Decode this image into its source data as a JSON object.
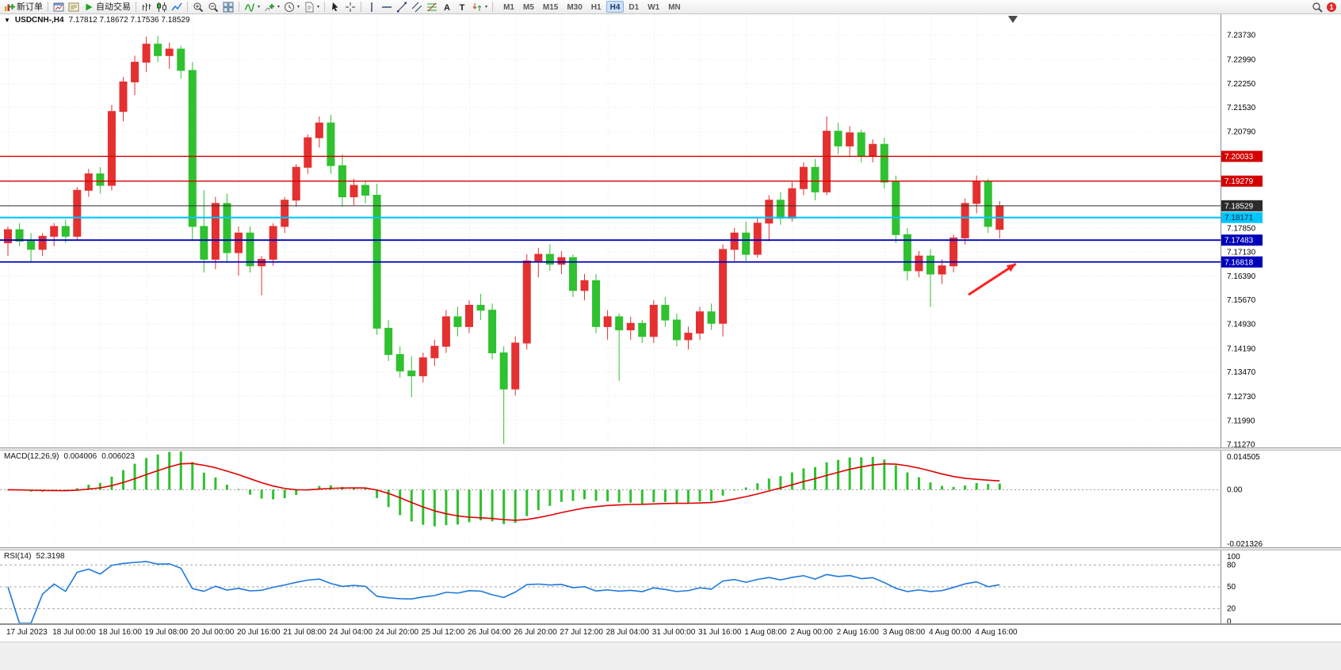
{
  "toolbar": {
    "new_order_label": "新订单",
    "auto_trading_label": "自动交易",
    "timeframes": [
      "M1",
      "M5",
      "M15",
      "M30",
      "H1",
      "H4",
      "D1",
      "W1",
      "MN"
    ],
    "active_timeframe": "H4",
    "notification_count": "1",
    "buttons": [
      {
        "name": "new-order-button",
        "icon": "new-order",
        "label_key": "new_order_label"
      },
      {
        "name": "sep"
      },
      {
        "name": "chart-window-button",
        "icon": "chart-window"
      },
      {
        "name": "profiles-button",
        "icon": "profiles"
      },
      {
        "name": "auto-trading-button",
        "icon": "play",
        "label_key": "auto_trading_label"
      },
      {
        "name": "sep"
      },
      {
        "name": "bar-chart-button",
        "icon": "bars-chart"
      },
      {
        "name": "candlestick-chart-button",
        "icon": "candles-chart"
      },
      {
        "name": "line-chart-button",
        "icon": "line-chart"
      },
      {
        "name": "sep"
      },
      {
        "name": "zoom-in-button",
        "icon": "zoom-in"
      },
      {
        "name": "zoom-out-button",
        "icon": "zoom-out"
      },
      {
        "name": "tile-windows-button",
        "icon": "tile-windows"
      },
      {
        "name": "sep"
      },
      {
        "name": "indicators-button",
        "icon": "indicators",
        "caret": true
      },
      {
        "name": "add-indicator-button",
        "icon": "plus-indicator",
        "caret": true
      },
      {
        "name": "periods-button",
        "icon": "clock",
        "caret": true
      },
      {
        "name": "templates-button",
        "icon": "template",
        "caret": true
      },
      {
        "name": "sep"
      },
      {
        "name": "cursor-button",
        "icon": "cursor"
      },
      {
        "name": "crosshair-button",
        "icon": "crosshair"
      },
      {
        "name": "sep"
      },
      {
        "name": "vertical-line-button",
        "icon": "vline"
      },
      {
        "name": "horizontal-line-button",
        "icon": "hline"
      },
      {
        "name": "trendline-button",
        "icon": "trendline"
      },
      {
        "name": "channel-button",
        "icon": "channel"
      },
      {
        "name": "fibonacci-button",
        "icon": "fibonacci"
      },
      {
        "name": "text-button",
        "icon": "text-a"
      },
      {
        "name": "label-button",
        "icon": "text-t"
      },
      {
        "name": "arrows-button",
        "icon": "arrows",
        "caret": true
      },
      {
        "name": "sep"
      }
    ]
  },
  "chart": {
    "symbol_label": "USDCNH-,H4",
    "ohlc_label": "7.17812 7.18672 7.17536 7.18529",
    "open": "7.17812",
    "high": "7.18672",
    "low": "7.17536",
    "close": "7.18529"
  },
  "chart_data": {
    "type": "candlestick",
    "symbol": "USDCNH-",
    "timeframe": "H4",
    "up_color": "#e53030",
    "down_color": "#2fc12f",
    "price_axis": {
      "top": 7.2436,
      "bottom": 7.1117,
      "ticks": [
        "7.23730",
        "7.22990",
        "7.22250",
        "7.21530",
        "7.20790",
        "7.17850",
        "7.17130",
        "7.16390",
        "7.15670",
        "7.14930",
        "7.14190",
        "7.13470",
        "7.12730",
        "7.11990",
        "7.11270"
      ]
    },
    "hlines": [
      {
        "price": 7.20033,
        "label": "7.20033",
        "color": "#d40000",
        "text": "#ffffff",
        "width": 1.4
      },
      {
        "price": 7.19279,
        "label": "7.19279",
        "color": "#d40000",
        "text": "#ffffff",
        "width": 1.4
      },
      {
        "price": 7.18529,
        "label": "7.18529",
        "color": "#2b2b2b",
        "text": "#ffffff",
        "width": 1
      },
      {
        "price": 7.18171,
        "label": "7.18171",
        "color": "#00c5ff",
        "text": "#00333f",
        "width": 2.2
      },
      {
        "price": 7.17483,
        "label": "7.17483",
        "color": "#0000bb",
        "text": "#ffffff",
        "width": 1.8
      },
      {
        "price": 7.16818,
        "label": "7.16818",
        "color": "#0000bb",
        "text": "#ffffff",
        "width": 1.8
      }
    ],
    "x_labels": [
      "17 Jul 2023",
      "18 Jul 00:00",
      "18 Jul 16:00",
      "19 Jul 08:00",
      "20 Jul 00:00",
      "20 Jul 16:00",
      "21 Jul 08:00",
      "24 Jul 04:00",
      "24 Jul 20:00",
      "25 Jul 12:00",
      "26 Jul 04:00",
      "26 Jul 20:00",
      "27 Jul 12:00",
      "28 Jul 04:00",
      "31 Jul 00:00",
      "31 Jul 16:00",
      "1 Aug 08:00",
      "2 Aug 00:00",
      "2 Aug 16:00",
      "3 Aug 08:00",
      "4 Aug 00:00",
      "4 Aug 16:00"
    ],
    "candles_per_label": 4,
    "candles": [
      [
        7.174,
        7.179,
        7.17,
        7.178
      ],
      [
        7.178,
        7.18,
        7.173,
        7.1745
      ],
      [
        7.1745,
        7.177,
        7.168,
        7.172
      ],
      [
        7.172,
        7.177,
        7.17,
        7.176
      ],
      [
        7.176,
        7.18,
        7.173,
        7.179
      ],
      [
        7.179,
        7.181,
        7.174,
        7.176
      ],
      [
        7.176,
        7.191,
        7.175,
        7.19
      ],
      [
        7.19,
        7.1965,
        7.188,
        7.195
      ],
      [
        7.195,
        7.197,
        7.189,
        7.1915
      ],
      [
        7.1915,
        7.216,
        7.19,
        7.214
      ],
      [
        7.214,
        7.2245,
        7.211,
        7.223
      ],
      [
        7.223,
        7.231,
        7.219,
        7.229
      ],
      [
        7.229,
        7.2368,
        7.226,
        7.2345
      ],
      [
        7.2345,
        7.237,
        7.229,
        7.231
      ],
      [
        7.231,
        7.235,
        7.227,
        7.233
      ],
      [
        7.233,
        7.234,
        7.224,
        7.2265
      ],
      [
        7.2265,
        7.229,
        7.175,
        7.179
      ],
      [
        7.179,
        7.19,
        7.165,
        7.169
      ],
      [
        7.169,
        7.188,
        7.166,
        7.186
      ],
      [
        7.186,
        7.189,
        7.168,
        7.171
      ],
      [
        7.171,
        7.179,
        7.164,
        7.177
      ],
      [
        7.177,
        7.179,
        7.165,
        7.167
      ],
      [
        7.167,
        7.17,
        7.158,
        7.169
      ],
      [
        7.169,
        7.18,
        7.167,
        7.179
      ],
      [
        7.179,
        7.188,
        7.177,
        7.187
      ],
      [
        7.187,
        7.198,
        7.185,
        7.197
      ],
      [
        7.197,
        7.207,
        7.195,
        7.206
      ],
      [
        7.206,
        7.2125,
        7.203,
        7.2105
      ],
      [
        7.2105,
        7.213,
        7.195,
        7.1975
      ],
      [
        7.1975,
        7.201,
        7.185,
        7.188
      ],
      [
        7.188,
        7.1935,
        7.1855,
        7.1915
      ],
      [
        7.1915,
        7.193,
        7.186,
        7.1885
      ],
      [
        7.1885,
        7.192,
        7.146,
        7.148
      ],
      [
        7.148,
        7.1505,
        7.138,
        7.14
      ],
      [
        7.14,
        7.1425,
        7.133,
        7.135
      ],
      [
        7.135,
        7.1395,
        7.127,
        7.1335
      ],
      [
        7.1335,
        7.1405,
        7.1315,
        7.139
      ],
      [
        7.139,
        7.1445,
        7.1365,
        7.1425
      ],
      [
        7.1425,
        7.1535,
        7.1405,
        7.1515
      ],
      [
        7.1515,
        7.1545,
        7.1455,
        7.1485
      ],
      [
        7.1485,
        7.1565,
        7.1465,
        7.155
      ],
      [
        7.155,
        7.1585,
        7.1505,
        7.1535
      ],
      [
        7.1535,
        7.1555,
        7.1385,
        7.1405
      ],
      [
        7.1405,
        7.1425,
        7.1127,
        7.1295
      ],
      [
        7.1295,
        7.1455,
        7.1275,
        7.1435
      ],
      [
        7.1435,
        7.1705,
        7.1415,
        7.1685
      ],
      [
        7.1685,
        7.1725,
        7.1635,
        7.1705
      ],
      [
        7.1705,
        7.1735,
        7.1655,
        7.1675
      ],
      [
        7.1675,
        7.1715,
        7.1645,
        7.1695
      ],
      [
        7.1695,
        7.1705,
        7.1575,
        7.1595
      ],
      [
        7.1595,
        7.1645,
        7.1565,
        7.1625
      ],
      [
        7.1625,
        7.1645,
        7.1465,
        7.1485
      ],
      [
        7.1485,
        7.1535,
        7.1445,
        7.1515
      ],
      [
        7.1515,
        7.1525,
        7.132,
        7.1475
      ],
      [
        7.1475,
        7.1515,
        7.1445,
        7.1495
      ],
      [
        7.1495,
        7.1505,
        7.1435,
        7.1455
      ],
      [
        7.1455,
        7.1565,
        7.1435,
        7.155
      ],
      [
        7.155,
        7.1575,
        7.1485,
        7.1505
      ],
      [
        7.1505,
        7.1525,
        7.1425,
        7.1445
      ],
      [
        7.1445,
        7.1485,
        7.1415,
        7.1465
      ],
      [
        7.1465,
        7.1545,
        7.1445,
        7.153
      ],
      [
        7.153,
        7.1555,
        7.1475,
        7.1495
      ],
      [
        7.1495,
        7.1735,
        7.1455,
        7.172
      ],
      [
        7.172,
        7.1785,
        7.1685,
        7.177
      ],
      [
        7.177,
        7.1805,
        7.1685,
        7.1705
      ],
      [
        7.1705,
        7.1815,
        7.1695,
        7.18
      ],
      [
        7.18,
        7.1885,
        7.1745,
        7.187
      ],
      [
        7.187,
        7.1895,
        7.1795,
        7.1815
      ],
      [
        7.1815,
        7.1925,
        7.1805,
        7.1905
      ],
      [
        7.1905,
        7.1985,
        7.1885,
        7.197
      ],
      [
        7.197,
        7.1995,
        7.187,
        7.1895
      ],
      [
        7.1895,
        7.2125,
        7.1885,
        7.208
      ],
      [
        7.208,
        7.2105,
        7.201,
        7.2035
      ],
      [
        7.2035,
        7.2095,
        7.2005,
        7.2075
      ],
      [
        7.2075,
        7.2085,
        7.1985,
        7.2005
      ],
      [
        7.2005,
        7.2055,
        7.1985,
        7.204
      ],
      [
        7.204,
        7.206,
        7.1905,
        7.1925
      ],
      [
        7.1925,
        7.1945,
        7.174,
        7.1765
      ],
      [
        7.1765,
        7.1785,
        7.1625,
        7.1655
      ],
      [
        7.1655,
        7.1715,
        7.1635,
        7.17
      ],
      [
        7.17,
        7.172,
        7.1545,
        7.1645
      ],
      [
        7.1645,
        7.169,
        7.1615,
        7.167
      ],
      [
        7.167,
        7.1765,
        7.165,
        7.1755
      ],
      [
        7.1755,
        7.1875,
        7.1735,
        7.186
      ],
      [
        7.186,
        7.1945,
        7.183,
        7.1925
      ],
      [
        7.1925,
        7.1935,
        7.177,
        7.179
      ],
      [
        7.17812,
        7.18672,
        7.17536,
        7.18529
      ]
    ],
    "annotation_arrow": {
      "from_index": 83.3,
      "from_price": 7.1582,
      "to_index": 87.4,
      "to_price": 7.1676,
      "color": "#ff2020"
    },
    "macd": {
      "label": "MACD(12,26,9)",
      "main_value": "0.004006",
      "signal_value": "0.006023",
      "fast": 12,
      "slow": 26,
      "signal_period": 9,
      "hist_color": "#2fc12f",
      "signal_color": "#e00000",
      "axis": {
        "max": 0.014505,
        "min": -0.021326,
        "ticks": [
          "0.014505",
          "0.00",
          "-0.021326"
        ]
      }
    },
    "rsi": {
      "label": "RSI(14)",
      "value": "52.3198",
      "period": 14,
      "color": "#1e78dc",
      "levels": [
        80,
        50,
        20
      ],
      "axis_ticks": [
        "100",
        "80",
        "50",
        "20",
        "0"
      ],
      "range": [
        0,
        100
      ]
    }
  }
}
